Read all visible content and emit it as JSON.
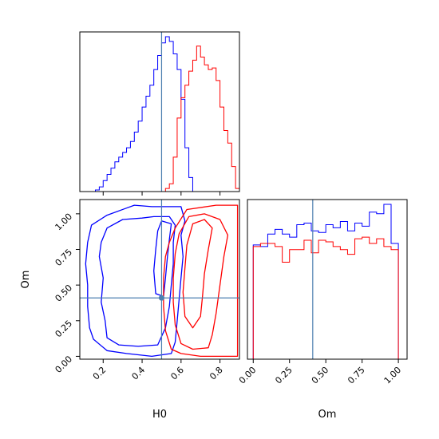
{
  "chart_data": {
    "type": "corner",
    "parameters": [
      "H0",
      "Om"
    ],
    "truth": {
      "H0": 0.5,
      "Om": 0.41
    },
    "colors": {
      "sample_a": "#0000ff",
      "sample_b": "#ff0000",
      "truth": "#4c7fb0"
    },
    "panels": [
      {
        "id": "hist-H0",
        "type": "histogram",
        "xlim": [
          0.08,
          0.9
        ],
        "series": [
          {
            "color": "#0000ff",
            "edges": [
              0.16,
              0.18,
              0.2,
              0.22,
              0.24,
              0.26,
              0.28,
              0.3,
              0.32,
              0.34,
              0.36,
              0.38,
              0.4,
              0.42,
              0.44,
              0.46,
              0.48,
              0.5,
              0.52,
              0.54,
              0.56,
              0.58,
              0.6,
              0.62,
              0.64,
              0.66
            ],
            "heights": [
              0.01,
              0.03,
              0.07,
              0.11,
              0.15,
              0.19,
              0.22,
              0.25,
              0.28,
              0.32,
              0.38,
              0.45,
              0.54,
              0.61,
              0.68,
              0.78,
              0.87,
              0.95,
              0.99,
              0.96,
              0.88,
              0.78,
              0.59,
              0.28,
              0.09
            ]
          },
          {
            "color": "#ff0000",
            "edges": [
              0.52,
              0.54,
              0.56,
              0.58,
              0.6,
              0.62,
              0.64,
              0.66,
              0.68,
              0.7,
              0.72,
              0.74,
              0.76,
              0.78,
              0.8,
              0.82,
              0.84,
              0.86,
              0.88,
              0.9
            ],
            "heights": [
              0.02,
              0.05,
              0.22,
              0.47,
              0.6,
              0.68,
              0.77,
              0.84,
              0.93,
              0.86,
              0.81,
              0.78,
              0.79,
              0.71,
              0.54,
              0.39,
              0.31,
              0.16,
              0.02
            ]
          }
        ]
      },
      {
        "id": "contour-H0-Om",
        "type": "contour",
        "xlim": [
          0.08,
          0.9
        ],
        "ylim": [
          -0.02,
          1.1
        ],
        "xticks": [
          "0.2",
          "0.4",
          "0.6",
          "0.8"
        ],
        "yticks": [
          "0.00",
          "0.25",
          "0.50",
          "0.75",
          "1.00"
        ],
        "xlabel": "H0",
        "ylabel": "Om",
        "contours": [
          {
            "color": "#0000ff",
            "points": [
              [
                0.36,
                1.06
              ],
              [
                0.45,
                1.05
              ],
              [
                0.54,
                1.05
              ],
              [
                0.6,
                1.05
              ],
              [
                0.62,
                0.95
              ],
              [
                0.6,
                0.85
              ],
              [
                0.61,
                0.7
              ],
              [
                0.6,
                0.55
              ],
              [
                0.59,
                0.4
              ],
              [
                0.58,
                0.25
              ],
              [
                0.57,
                0.1
              ],
              [
                0.55,
                0.02
              ],
              [
                0.45,
                0.0
              ],
              [
                0.32,
                0.02
              ],
              [
                0.22,
                0.04
              ],
              [
                0.15,
                0.12
              ],
              [
                0.13,
                0.2
              ],
              [
                0.12,
                0.35
              ],
              [
                0.12,
                0.5
              ],
              [
                0.11,
                0.65
              ],
              [
                0.12,
                0.8
              ],
              [
                0.14,
                0.92
              ],
              [
                0.22,
                0.99
              ],
              [
                0.32,
                1.04
              ]
            ]
          },
          {
            "color": "#0000ff",
            "points": [
              [
                0.46,
                0.98
              ],
              [
                0.54,
                0.98
              ],
              [
                0.57,
                0.92
              ],
              [
                0.56,
                0.8
              ],
              [
                0.56,
                0.65
              ],
              [
                0.55,
                0.5
              ],
              [
                0.54,
                0.35
              ],
              [
                0.52,
                0.2
              ],
              [
                0.48,
                0.08
              ],
              [
                0.38,
                0.07
              ],
              [
                0.28,
                0.08
              ],
              [
                0.22,
                0.13
              ],
              [
                0.21,
                0.25
              ],
              [
                0.19,
                0.38
              ],
              [
                0.2,
                0.55
              ],
              [
                0.18,
                0.7
              ],
              [
                0.19,
                0.8
              ],
              [
                0.22,
                0.9
              ],
              [
                0.3,
                0.96
              ],
              [
                0.4,
                0.97
              ]
            ]
          },
          {
            "color": "#0000ff",
            "points": [
              [
                0.5,
                0.95
              ],
              [
                0.55,
                0.93
              ],
              [
                0.54,
                0.82
              ],
              [
                0.53,
                0.7
              ],
              [
                0.52,
                0.55
              ],
              [
                0.51,
                0.42
              ],
              [
                0.47,
                0.44
              ],
              [
                0.46,
                0.6
              ],
              [
                0.47,
                0.75
              ],
              [
                0.48,
                0.88
              ]
            ]
          },
          {
            "color": "#ff0000",
            "points": [
              [
                0.63,
                1.03
              ],
              [
                0.78,
                1.06
              ],
              [
                0.89,
                1.06
              ],
              [
                0.89,
                0.7
              ],
              [
                0.89,
                0.3
              ],
              [
                0.89,
                0.0
              ],
              [
                0.7,
                0.0
              ],
              [
                0.6,
                0.02
              ],
              [
                0.55,
                0.05
              ],
              [
                0.52,
                0.18
              ],
              [
                0.51,
                0.35
              ],
              [
                0.51,
                0.55
              ],
              [
                0.52,
                0.7
              ],
              [
                0.54,
                0.8
              ],
              [
                0.57,
                0.9
              ]
            ]
          },
          {
            "color": "#ff0000",
            "points": [
              [
                0.64,
                0.98
              ],
              [
                0.72,
                1.0
              ],
              [
                0.8,
                0.96
              ],
              [
                0.84,
                0.85
              ],
              [
                0.82,
                0.7
              ],
              [
                0.8,
                0.5
              ],
              [
                0.78,
                0.3
              ],
              [
                0.76,
                0.15
              ],
              [
                0.74,
                0.06
              ],
              [
                0.66,
                0.05
              ],
              [
                0.6,
                0.09
              ],
              [
                0.57,
                0.22
              ],
              [
                0.56,
                0.38
              ],
              [
                0.56,
                0.55
              ],
              [
                0.57,
                0.72
              ],
              [
                0.59,
                0.86
              ]
            ]
          },
          {
            "color": "#ff0000",
            "points": [
              [
                0.66,
                0.93
              ],
              [
                0.72,
                0.96
              ],
              [
                0.76,
                0.9
              ],
              [
                0.74,
                0.75
              ],
              [
                0.72,
                0.58
              ],
              [
                0.71,
                0.42
              ],
              [
                0.7,
                0.28
              ],
              [
                0.66,
                0.2
              ],
              [
                0.62,
                0.28
              ],
              [
                0.61,
                0.45
              ],
              [
                0.62,
                0.62
              ],
              [
                0.63,
                0.78
              ]
            ]
          }
        ]
      },
      {
        "id": "hist-Om",
        "type": "histogram",
        "xlim": [
          -0.04,
          1.06
        ],
        "xticks": [
          "0.00",
          "0.25",
          "0.50",
          "0.75",
          "1.00"
        ],
        "xlabel": "Om",
        "series": [
          {
            "color": "#0000ff",
            "edges": [
              0.0,
              0.05,
              0.1,
              0.15,
              0.2,
              0.25,
              0.3,
              0.35,
              0.4,
              0.45,
              0.5,
              0.55,
              0.6,
              0.65,
              0.7,
              0.75,
              0.8,
              0.85,
              0.9,
              0.95,
              1.0
            ],
            "heights": [
              0.73,
              0.72,
              0.8,
              0.83,
              0.8,
              0.78,
              0.86,
              0.87,
              0.82,
              0.81,
              0.86,
              0.84,
              0.88,
              0.82,
              0.87,
              0.85,
              0.94,
              0.93,
              0.99,
              0.74
            ]
          },
          {
            "color": "#ff0000",
            "edges": [
              0.0,
              0.05,
              0.1,
              0.15,
              0.2,
              0.25,
              0.3,
              0.35,
              0.4,
              0.45,
              0.5,
              0.55,
              0.6,
              0.65,
              0.7,
              0.75,
              0.8,
              0.85,
              0.9,
              0.95,
              1.0
            ],
            "heights": [
              0.72,
              0.74,
              0.74,
              0.72,
              0.62,
              0.7,
              0.7,
              0.76,
              0.68,
              0.76,
              0.75,
              0.72,
              0.7,
              0.67,
              0.77,
              0.78,
              0.74,
              0.77,
              0.72,
              0.7
            ]
          }
        ]
      }
    ]
  }
}
